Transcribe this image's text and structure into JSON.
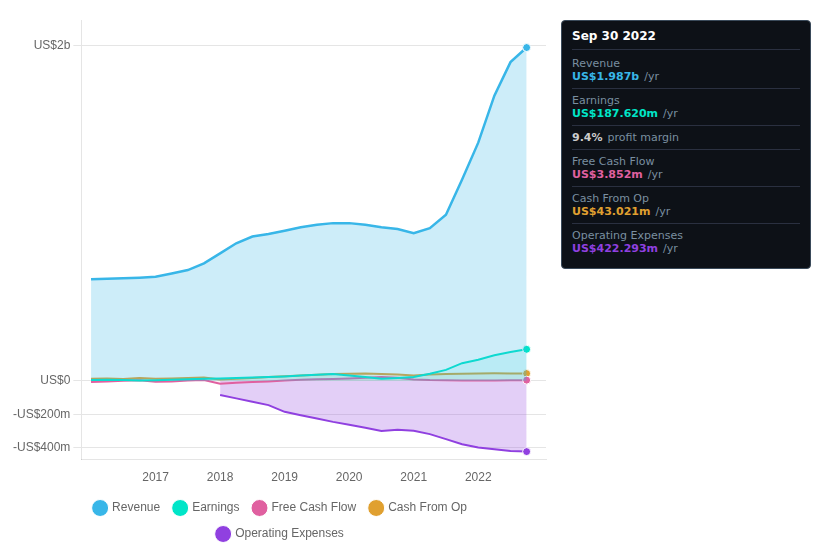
{
  "chart_data": {
    "type": "line",
    "x": [
      2016.0,
      2016.25,
      2016.5,
      2016.75,
      2017.0,
      2017.25,
      2017.5,
      2017.75,
      2018.0,
      2018.25,
      2018.5,
      2018.75,
      2019.0,
      2019.25,
      2019.5,
      2019.75,
      2020.0,
      2020.25,
      2020.5,
      2020.75,
      2021.0,
      2021.25,
      2021.5,
      2021.75,
      2022.0,
      2022.25,
      2022.5,
      2022.75
    ],
    "series": [
      {
        "name": "Revenue",
        "color": "#38b6e8",
        "values": [
          605,
          608,
          612,
          615,
          620,
          640,
          660,
          700,
          760,
          820,
          860,
          875,
          895,
          915,
          930,
          940,
          940,
          930,
          915,
          905,
          880,
          910,
          990,
          1200,
          1420,
          1700,
          1900,
          1987
        ]
      },
      {
        "name": "Earnings",
        "color": "#00e5c8",
        "values": [
          5,
          6,
          4,
          2,
          3,
          6,
          9,
          12,
          14,
          17,
          20,
          22,
          26,
          31,
          36,
          40,
          32,
          22,
          12,
          16,
          22,
          42,
          65,
          105,
          125,
          152,
          172,
          187.62
        ]
      },
      {
        "name": "Free Cash Flow",
        "color": "#e060a0",
        "values": [
          -8,
          -5,
          0,
          3,
          -6,
          -4,
          2,
          5,
          -18,
          -12,
          -8,
          -4,
          2,
          6,
          9,
          11,
          14,
          18,
          22,
          18,
          8,
          4,
          3,
          2,
          1,
          2,
          3,
          3.852
        ]
      },
      {
        "name": "Cash From Op",
        "color": "#e0a030",
        "values": [
          12,
          14,
          10,
          16,
          12,
          14,
          17,
          20,
          8,
          12,
          17,
          22,
          27,
          32,
          36,
          40,
          42,
          44,
          40,
          37,
          32,
          37,
          40,
          42,
          44,
          45,
          44,
          43.021
        ]
      },
      {
        "name": "Operating Expenses",
        "color": "#9040e0",
        "values": [
          null,
          null,
          null,
          null,
          null,
          null,
          null,
          null,
          -85,
          -105,
          -125,
          -145,
          -185,
          -205,
          -225,
          -245,
          -262,
          -280,
          -300,
          -292,
          -298,
          -318,
          -348,
          -378,
          -398,
          -408,
          -418,
          -422.293
        ]
      }
    ],
    "xlim": [
      2015.85,
      2023.05
    ],
    "xticks": [
      2017,
      2018,
      2019,
      2020,
      2021,
      2022
    ],
    "ylim": [
      -470,
      2150
    ],
    "yticks": [
      {
        "value": -400,
        "label": "-US$400m"
      },
      {
        "value": -200,
        "label": "-US$200m"
      },
      {
        "value": 0,
        "label": "US$0"
      },
      {
        "value": 2000,
        "label": "US$2b"
      }
    ],
    "grid": true,
    "legend": "bottom",
    "annotations": {
      "title": "Sep 30 2022",
      "rows": [
        {
          "label": "Revenue",
          "value": "US$1.987b",
          "suffix": "/yr",
          "color": "#38b6e8"
        },
        {
          "label": "Earnings",
          "value": "US$187.620m",
          "suffix": "/yr",
          "color": "#00e5c8"
        },
        {
          "value": "9.4%",
          "suffix": "profit margin",
          "color": "#cccccc"
        },
        {
          "label": "Free Cash Flow",
          "value": "US$3.852m",
          "suffix": "/yr",
          "color": "#e060a0"
        },
        {
          "label": "Cash From Op",
          "value": "US$43.021m",
          "suffix": "/yr",
          "color": "#e0a030"
        },
        {
          "label": "Operating Expenses",
          "value": "US$422.293m",
          "suffix": "/yr",
          "color": "#9040e0"
        }
      ]
    }
  }
}
